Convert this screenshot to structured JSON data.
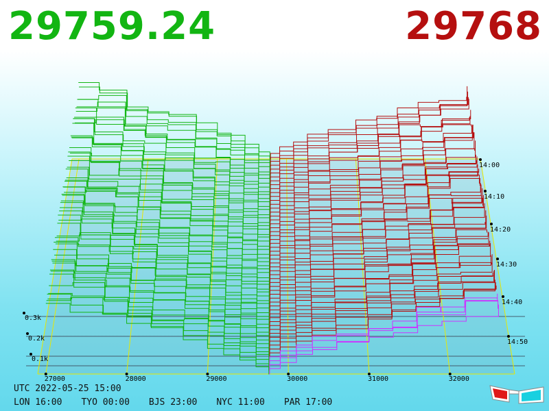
{
  "header": {
    "bid_price": "29759.24",
    "ask_price": "29768"
  },
  "colors": {
    "bid": "#12b512",
    "ask": "#b50f0f",
    "axis": "#e8e800",
    "highlight": "#cc33ff"
  },
  "footer": {
    "utc": "UTC 2022-05-25 15:00",
    "zones": [
      {
        "label": "LON 16:00"
      },
      {
        "label": "TYO 00:00"
      },
      {
        "label": "BJS 23:00"
      },
      {
        "label": "NYC 11:00"
      },
      {
        "label": "PAR 17:00"
      }
    ]
  },
  "chart_data": {
    "type": "area",
    "x_ticks": [
      27000,
      28000,
      29000,
      30000,
      31000,
      32000
    ],
    "xlim": [
      26900,
      32800
    ],
    "mid_price": 29762,
    "depth_ticks": [
      "0.3k",
      "0.2k",
      "0.1k"
    ],
    "time_ticks": [
      "14:00",
      "14:10",
      "14:20",
      "14:30",
      "14:40",
      "14:50"
    ],
    "bid_depth_range": [
      0,
      0.36
    ],
    "ask_depth_range": [
      0,
      0.32
    ],
    "series": [
      {
        "side": "bid",
        "step_prices": [
          27000,
          27300,
          27700,
          28000,
          28300,
          28700,
          29000,
          29200,
          29400,
          29600,
          29759
        ]
      },
      {
        "side": "ask",
        "step_prices": [
          29768,
          29900,
          30100,
          30300,
          30600,
          31000,
          31300,
          31600,
          31900,
          32200,
          32600
        ]
      }
    ],
    "grid": true
  }
}
